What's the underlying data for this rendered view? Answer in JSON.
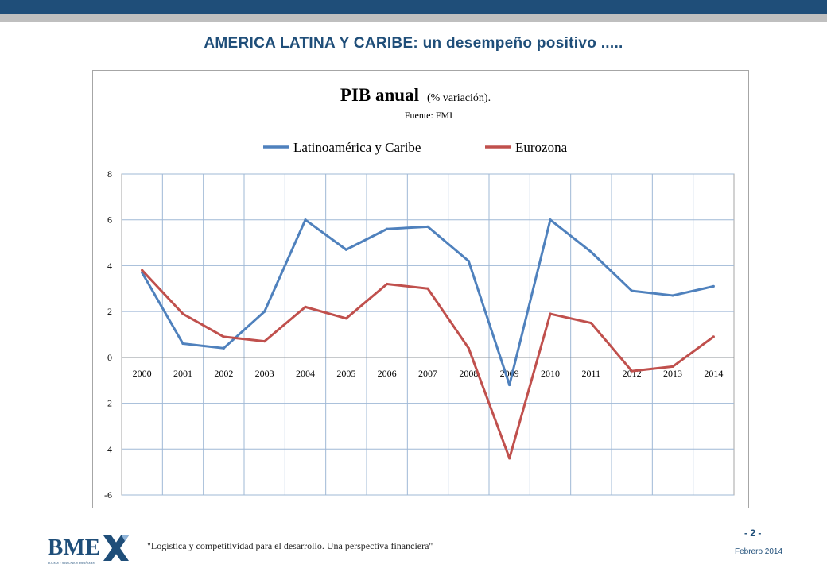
{
  "slide": {
    "title": "AMERICA LATINA Y CARIBE:  un desempeño positivo .....",
    "footer_quote": "\"Logística y competitividad para el desarrollo. Una perspectiva financiera\"",
    "page_number": "- 2 -",
    "date": "Febrero 2014",
    "logo_text": "BME",
    "logo_subtitle": "BOLSAS Y MERCADOS ESPAÑOLES",
    "brand_color": "#1f4e79"
  },
  "chart_data": {
    "type": "line",
    "title": "PIB anual",
    "title_suffix": "(% variación).",
    "subtitle": "Fuente: FMI",
    "xlabel": "",
    "ylabel": "",
    "categories": [
      "2000",
      "2001",
      "2002",
      "2003",
      "2004",
      "2005",
      "2006",
      "2007",
      "2008",
      "2009",
      "2010",
      "2011",
      "2012",
      "2013",
      "2014"
    ],
    "ylim": [
      -6,
      8
    ],
    "yticks": [
      8,
      6,
      4,
      2,
      0,
      -2,
      -4,
      -6
    ],
    "grid": true,
    "legend": "top",
    "series": [
      {
        "name": "Latinoamérica y Caribe",
        "color": "#4f81bd",
        "values": [
          3.7,
          0.6,
          0.4,
          2.0,
          6.0,
          4.7,
          5.6,
          5.7,
          4.2,
          -1.2,
          6.0,
          4.6,
          2.9,
          2.7,
          3.1
        ]
      },
      {
        "name": "Eurozona",
        "color": "#c0504d",
        "values": [
          3.8,
          1.9,
          0.9,
          0.7,
          2.2,
          1.7,
          3.2,
          3.0,
          0.4,
          -4.4,
          1.9,
          1.5,
          -0.6,
          -0.4,
          0.9
        ]
      }
    ]
  }
}
